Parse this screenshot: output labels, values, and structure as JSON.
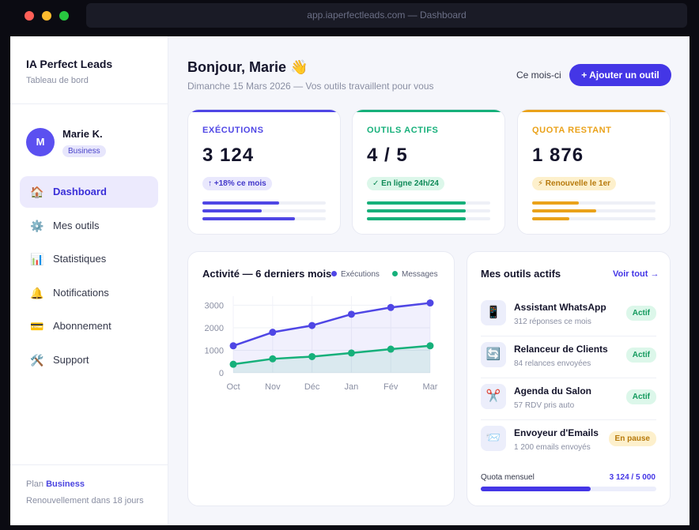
{
  "browser": {
    "url": "app.iaperfectleads.com — Dashboard"
  },
  "sidebar": {
    "brand": "IA Perfect Leads",
    "brand_sub": "Tableau de bord",
    "user": {
      "initial": "M",
      "name": "Marie K.",
      "badge": "Business"
    },
    "items": [
      {
        "label": "Dashboard",
        "icon": "home-icon",
        "glyph": "🏠",
        "active": true
      },
      {
        "label": "Mes outils",
        "icon": "gear-icon",
        "glyph": "⚙️",
        "active": false
      },
      {
        "label": "Statistiques",
        "icon": "bar-chart-icon",
        "glyph": "📊",
        "active": false
      },
      {
        "label": "Notifications",
        "icon": "bell-icon",
        "glyph": "🔔",
        "active": false
      },
      {
        "label": "Abonnement",
        "icon": "credit-card-icon",
        "glyph": "💳",
        "active": false
      },
      {
        "label": "Support",
        "icon": "tools-icon",
        "glyph": "🛠️",
        "active": false
      }
    ],
    "plan_prefix": "Plan",
    "plan_name": "Business",
    "renewal": "Renouvellement dans 18 jours"
  },
  "header": {
    "greeting": "Bonjour, Marie 👋",
    "subtitle": "Dimanche 15 Mars 2026 — Vos outils travaillent pour vous",
    "period": "Ce mois-ci",
    "add_button": "+ Ajouter un outil"
  },
  "stats": [
    {
      "title": "EXÉCUTIONS",
      "value": "3 124",
      "pill": "↑ +18% ce mois",
      "color": "#4f46e5",
      "pill_bg": "#e9e8fd",
      "pill_fg": "#4338ca",
      "bars": [
        0.62,
        0.48,
        0.75
      ]
    },
    {
      "title": "OUTILS ACTIFS",
      "value": "4 / 5",
      "pill": "✓ En ligne 24h/24",
      "color": "#16b07a",
      "pill_bg": "#dcf7ea",
      "pill_fg": "#0f8a58",
      "bars": [
        0.8,
        0.8,
        0.8
      ]
    },
    {
      "title": "QUOTA RESTANT",
      "value": "1 876",
      "pill": "⚡ Renouvelle le 1er",
      "color": "#eaa21a",
      "pill_bg": "#fdf0cc",
      "pill_fg": "#b7790b",
      "bars": [
        0.38,
        0.52,
        0.3
      ]
    }
  ],
  "activity": {
    "title": "Activité — 6 derniers mois",
    "legend": [
      {
        "name": "Exécutions",
        "color": "#4f46e5"
      },
      {
        "name": "Messages",
        "color": "#16b07a"
      }
    ]
  },
  "chart_data": {
    "type": "line",
    "title": "Activité — 6 derniers mois",
    "categories": [
      "Oct",
      "Nov",
      "Déc",
      "Jan",
      "Fév",
      "Mar"
    ],
    "series": [
      {
        "name": "Exécutions",
        "values": [
          1200,
          1800,
          2100,
          2600,
          2900,
          3100
        ]
      },
      {
        "name": "Messages",
        "values": [
          380,
          620,
          720,
          880,
          1050,
          1200
        ]
      }
    ],
    "yticks": [
      "0",
      "1000",
      "2000",
      "3000"
    ],
    "ylim": [
      0,
      3400
    ],
    "grid": true
  },
  "tools": {
    "title": "Mes outils actifs",
    "see_all": "Voir tout →",
    "items": [
      {
        "name": "Assistant WhatsApp",
        "sub": "312 réponses ce mois",
        "status": "Actif",
        "icon": "phone-icon",
        "glyph": "📱",
        "state": "on"
      },
      {
        "name": "Relanceur de Clients",
        "sub": "84 relances envoyées",
        "status": "Actif",
        "icon": "refresh-icon",
        "glyph": "🔄",
        "state": "on"
      },
      {
        "name": "Agenda du Salon",
        "sub": "57 RDV pris auto",
        "status": "Actif",
        "icon": "scissors-icon",
        "glyph": "✂️",
        "state": "on"
      },
      {
        "name": "Envoyeur d'Emails",
        "sub": "1 200 emails envoyés",
        "status": "En pause",
        "icon": "mail-icon",
        "glyph": "📨",
        "state": "pause"
      }
    ],
    "quota_label": "Quota mensuel",
    "quota_value": "3 124 / 5 000",
    "quota_fraction": 0.6248
  }
}
